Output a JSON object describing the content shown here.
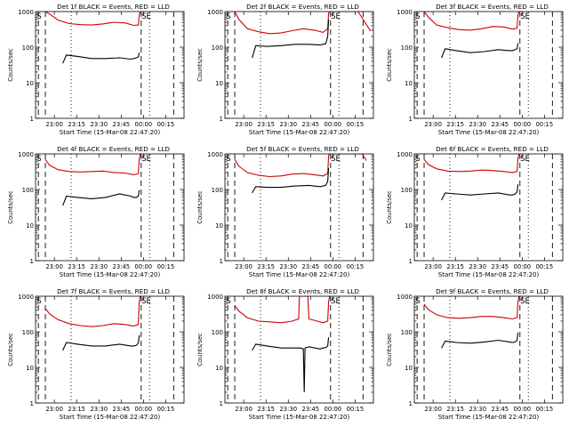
{
  "chart_data": [
    {
      "type": "line",
      "title": "Det 1f BLACK = Events, RED = LLD",
      "xlabel": "Start Time (15-Mar-08 22:47:20)",
      "ylabel": "Counts/sec",
      "y_scale": "log",
      "ylim": [
        1,
        1000
      ],
      "xlim": [
        0,
        53
      ],
      "x_ticks": [
        "23:00",
        "23:15",
        "23:30",
        "23:45",
        "00:00",
        "00:15"
      ],
      "y_ticks": [
        "1",
        "10",
        "100",
        "1000"
      ],
      "annotations": [
        "S",
        "SE"
      ],
      "series": [
        {
          "color": "#000000",
          "x": [
            9.7,
            11,
            15,
            20,
            25,
            30,
            34,
            35,
            36,
            36.7,
            37
          ],
          "values": [
            35,
            60,
            55,
            48,
            48,
            50,
            46,
            48,
            50,
            53,
            70
          ]
        },
        {
          "color": "#cc0000",
          "x": [
            3.5,
            5,
            8,
            12,
            16,
            20,
            24,
            28,
            32,
            35,
            36.7,
            37,
            37.4
          ],
          "values": [
            1000,
            850,
            580,
            460,
            430,
            420,
            450,
            500,
            480,
            410,
            420,
            800,
            1000
          ]
        }
      ]
    },
    {
      "type": "line",
      "title": "Det 2f BLACK = Events, RED = LLD",
      "xlabel": "Start Time (15-Mar-08 22:47:20)",
      "ylabel": "Counts/sec",
      "y_scale": "log",
      "ylim": [
        1,
        1000
      ],
      "xlim": [
        0,
        53
      ],
      "x_ticks": [
        "23:00",
        "23:15",
        "23:30",
        "23:45",
        "00:00",
        "00:15"
      ],
      "y_ticks": [
        "1",
        "10",
        "100",
        "1000"
      ],
      "annotations": [
        "S",
        "SE"
      ],
      "series": [
        {
          "color": "#000000",
          "x": [
            9.7,
            11,
            15,
            20,
            25,
            30,
            34,
            35,
            36,
            36.7,
            37
          ],
          "values": [
            50,
            110,
            105,
            110,
            120,
            120,
            115,
            120,
            125,
            200,
            600
          ]
        },
        {
          "color": "#cc0000",
          "x": [
            3.5,
            5,
            8,
            12,
            16,
            20,
            24,
            28,
            32,
            35,
            36.7,
            37,
            37.4,
            45,
            47.5,
            50,
            52
          ],
          "values": [
            1000,
            600,
            330,
            270,
            240,
            250,
            290,
            330,
            300,
            260,
            330,
            900,
            1000,
            1000,
            1000,
            500,
            280
          ]
        }
      ]
    },
    {
      "type": "line",
      "title": "Det 3f BLACK = Events, RED = LLD",
      "xlabel": "Start Time (15-Mar-08 22:47:20)",
      "ylabel": "Counts/sec",
      "y_scale": "log",
      "ylim": [
        1,
        1000
      ],
      "xlim": [
        0,
        53
      ],
      "x_ticks": [
        "23:00",
        "23:15",
        "23:30",
        "23:45",
        "00:00",
        "00:15"
      ],
      "y_ticks": [
        "1",
        "10",
        "100",
        "1000"
      ],
      "annotations": [
        "S",
        "SE"
      ],
      "series": [
        {
          "color": "#000000",
          "x": [
            9.7,
            11,
            15,
            20,
            25,
            30,
            34,
            35,
            36,
            36.7,
            37
          ],
          "values": [
            50,
            90,
            80,
            70,
            75,
            85,
            80,
            80,
            85,
            90,
            130
          ]
        },
        {
          "color": "#cc0000",
          "x": [
            3.5,
            5,
            8,
            12,
            16,
            20,
            24,
            28,
            32,
            35,
            36.7,
            37,
            37.4
          ],
          "values": [
            1000,
            700,
            420,
            350,
            310,
            300,
            330,
            380,
            370,
            320,
            340,
            800,
            1000
          ]
        }
      ]
    },
    {
      "type": "line",
      "title": "Det 4f BLACK = Events, RED = LLD",
      "xlabel": "Start Time (15-Mar-08 22:47:20)",
      "ylabel": "Counts/sec",
      "y_scale": "log",
      "ylim": [
        1,
        1000
      ],
      "xlim": [
        0,
        53
      ],
      "x_ticks": [
        "23:00",
        "23:15",
        "23:30",
        "23:45",
        "00:00",
        "00:15"
      ],
      "y_ticks": [
        "1",
        "10",
        "100",
        "1000"
      ],
      "annotations": [
        "S",
        "SE"
      ],
      "series": [
        {
          "color": "#000000",
          "x": [
            9.7,
            11,
            15,
            20,
            25,
            30,
            34,
            35,
            36,
            36.7,
            37
          ],
          "values": [
            35,
            65,
            60,
            55,
            60,
            75,
            65,
            60,
            60,
            65,
            95
          ]
        },
        {
          "color": "#cc0000",
          "x": [
            3.5,
            5,
            8,
            12,
            16,
            20,
            24,
            28,
            32,
            35,
            36.7,
            37,
            37.4
          ],
          "values": [
            700,
            480,
            360,
            320,
            310,
            320,
            330,
            300,
            290,
            260,
            280,
            700,
            1000
          ]
        }
      ]
    },
    {
      "type": "line",
      "title": "Det 5f BLACK = Events, RED = LLD",
      "xlabel": "Start Time (15-Mar-08 22:47:20)",
      "ylabel": "Counts/sec",
      "y_scale": "log",
      "ylim": [
        1,
        1000
      ],
      "xlim": [
        0,
        53
      ],
      "x_ticks": [
        "23:00",
        "23:15",
        "23:30",
        "23:45",
        "00:00",
        "00:15"
      ],
      "y_ticks": [
        "1",
        "10",
        "100",
        "1000"
      ],
      "annotations": [
        "S",
        "SE"
      ],
      "series": [
        {
          "color": "#000000",
          "x": [
            9.7,
            11,
            15,
            20,
            25,
            30,
            34,
            35,
            36,
            36.7,
            37
          ],
          "values": [
            80,
            120,
            115,
            115,
            125,
            130,
            120,
            125,
            130,
            170,
            400
          ]
        },
        {
          "color": "#cc0000",
          "x": [
            3.5,
            5,
            8,
            12,
            16,
            20,
            24,
            28,
            32,
            35,
            36.7,
            37,
            37.4,
            47,
            49,
            50.5
          ],
          "values": [
            700,
            450,
            300,
            250,
            230,
            240,
            270,
            280,
            260,
            240,
            280,
            900,
            1000,
            1000,
            1000,
            650
          ]
        }
      ]
    },
    {
      "type": "line",
      "title": "Det 6f BLACK = Events, RED = LLD",
      "xlabel": "Start Time (15-Mar-08 22:47:20)",
      "ylabel": "Counts/sec",
      "y_scale": "log",
      "ylim": [
        1,
        1000
      ],
      "xlim": [
        0,
        53
      ],
      "x_ticks": [
        "23:00",
        "23:15",
        "23:30",
        "23:45",
        "00:00",
        "00:15"
      ],
      "y_ticks": [
        "1",
        "10",
        "100",
        "1000"
      ],
      "annotations": [
        "S",
        "SE"
      ],
      "series": [
        {
          "color": "#000000",
          "x": [
            9.7,
            11,
            15,
            20,
            25,
            30,
            34,
            35,
            36,
            36.7,
            37
          ],
          "values": [
            50,
            80,
            75,
            70,
            75,
            80,
            70,
            70,
            75,
            85,
            140
          ]
        },
        {
          "color": "#cc0000",
          "x": [
            3.5,
            5,
            8,
            12,
            16,
            20,
            24,
            28,
            32,
            35,
            36.7,
            37,
            37.4
          ],
          "values": [
            700,
            500,
            380,
            330,
            320,
            330,
            350,
            340,
            320,
            300,
            320,
            750,
            1000
          ]
        }
      ]
    },
    {
      "type": "line",
      "title": "Det 7f BLACK = Events, RED = LLD",
      "xlabel": "Start Time (15-Mar-08 22:47:20)",
      "ylabel": "Counts/sec",
      "y_scale": "log",
      "ylim": [
        1,
        1000
      ],
      "xlim": [
        0,
        53
      ],
      "x_ticks": [
        "23:00",
        "23:15",
        "23:30",
        "23:45",
        "00:00",
        "00:15"
      ],
      "y_ticks": [
        "1",
        "10",
        "100",
        "1000"
      ],
      "annotations": [
        "S",
        "SE"
      ],
      "series": [
        {
          "color": "#000000",
          "x": [
            9.7,
            11,
            15,
            20,
            25,
            30,
            34,
            35,
            36,
            36.7,
            37
          ],
          "values": [
            30,
            50,
            45,
            40,
            40,
            45,
            40,
            40,
            42,
            48,
            80
          ]
        },
        {
          "color": "#cc0000",
          "x": [
            3.5,
            5,
            8,
            12,
            16,
            20,
            24,
            28,
            32,
            35,
            36.7,
            37,
            37.4
          ],
          "values": [
            450,
            320,
            220,
            170,
            150,
            140,
            150,
            170,
            160,
            145,
            160,
            700,
            1000
          ]
        }
      ]
    },
    {
      "type": "line",
      "title": "Det 8f BLACK = Events, RED = LLD",
      "xlabel": "Start Time (15-Mar-08 22:47:20)",
      "ylabel": "Counts/sec",
      "y_scale": "log",
      "ylim": [
        1,
        1000
      ],
      "xlim": [
        0,
        53
      ],
      "x_ticks": [
        "23:00",
        "23:15",
        "23:30",
        "23:45",
        "00:00",
        "00:15"
      ],
      "y_ticks": [
        "1",
        "10",
        "100",
        "1000"
      ],
      "annotations": [
        "S",
        "SE"
      ],
      "series": [
        {
          "color": "#000000",
          "x": [
            9.7,
            11,
            15,
            20,
            25,
            27,
            28,
            28.3,
            28.6,
            30,
            34,
            35,
            36,
            36.7,
            37
          ],
          "values": [
            30,
            45,
            40,
            35,
            35,
            35,
            33,
            2,
            35,
            38,
            33,
            35,
            36,
            40,
            70
          ]
        },
        {
          "color": "#cc0000",
          "x": [
            3.5,
            5,
            8,
            12,
            16,
            20,
            24,
            26.3,
            26.6,
            29.6,
            30,
            33,
            35,
            36.7,
            37,
            37.4
          ],
          "values": [
            550,
            380,
            250,
            200,
            190,
            180,
            200,
            230,
            1000,
            1000,
            230,
            200,
            180,
            200,
            700,
            1000
          ]
        }
      ]
    },
    {
      "type": "line",
      "title": "Det 9f BLACK = Events, RED = LLD",
      "xlabel": "Start Time (15-Mar-08 22:47:20)",
      "ylabel": "Counts/sec",
      "y_scale": "log",
      "ylim": [
        1,
        1000
      ],
      "xlim": [
        0,
        53
      ],
      "x_ticks": [
        "23:00",
        "23:15",
        "23:30",
        "23:45",
        "00:00",
        "00:15"
      ],
      "y_ticks": [
        "1",
        "10",
        "100",
        "1000"
      ],
      "annotations": [
        "S",
        "SE"
      ],
      "series": [
        {
          "color": "#000000",
          "x": [
            9.7,
            11,
            15,
            20,
            25,
            30,
            34,
            35,
            36,
            36.7,
            37
          ],
          "values": [
            35,
            55,
            50,
            48,
            52,
            58,
            52,
            50,
            52,
            58,
            95
          ]
        },
        {
          "color": "#cc0000",
          "x": [
            3.5,
            5,
            8,
            12,
            16,
            20,
            24,
            28,
            32,
            35,
            36.7,
            37,
            37.4
          ],
          "values": [
            600,
            420,
            300,
            250,
            240,
            250,
            270,
            270,
            250,
            230,
            250,
            700,
            1000
          ]
        }
      ]
    }
  ]
}
